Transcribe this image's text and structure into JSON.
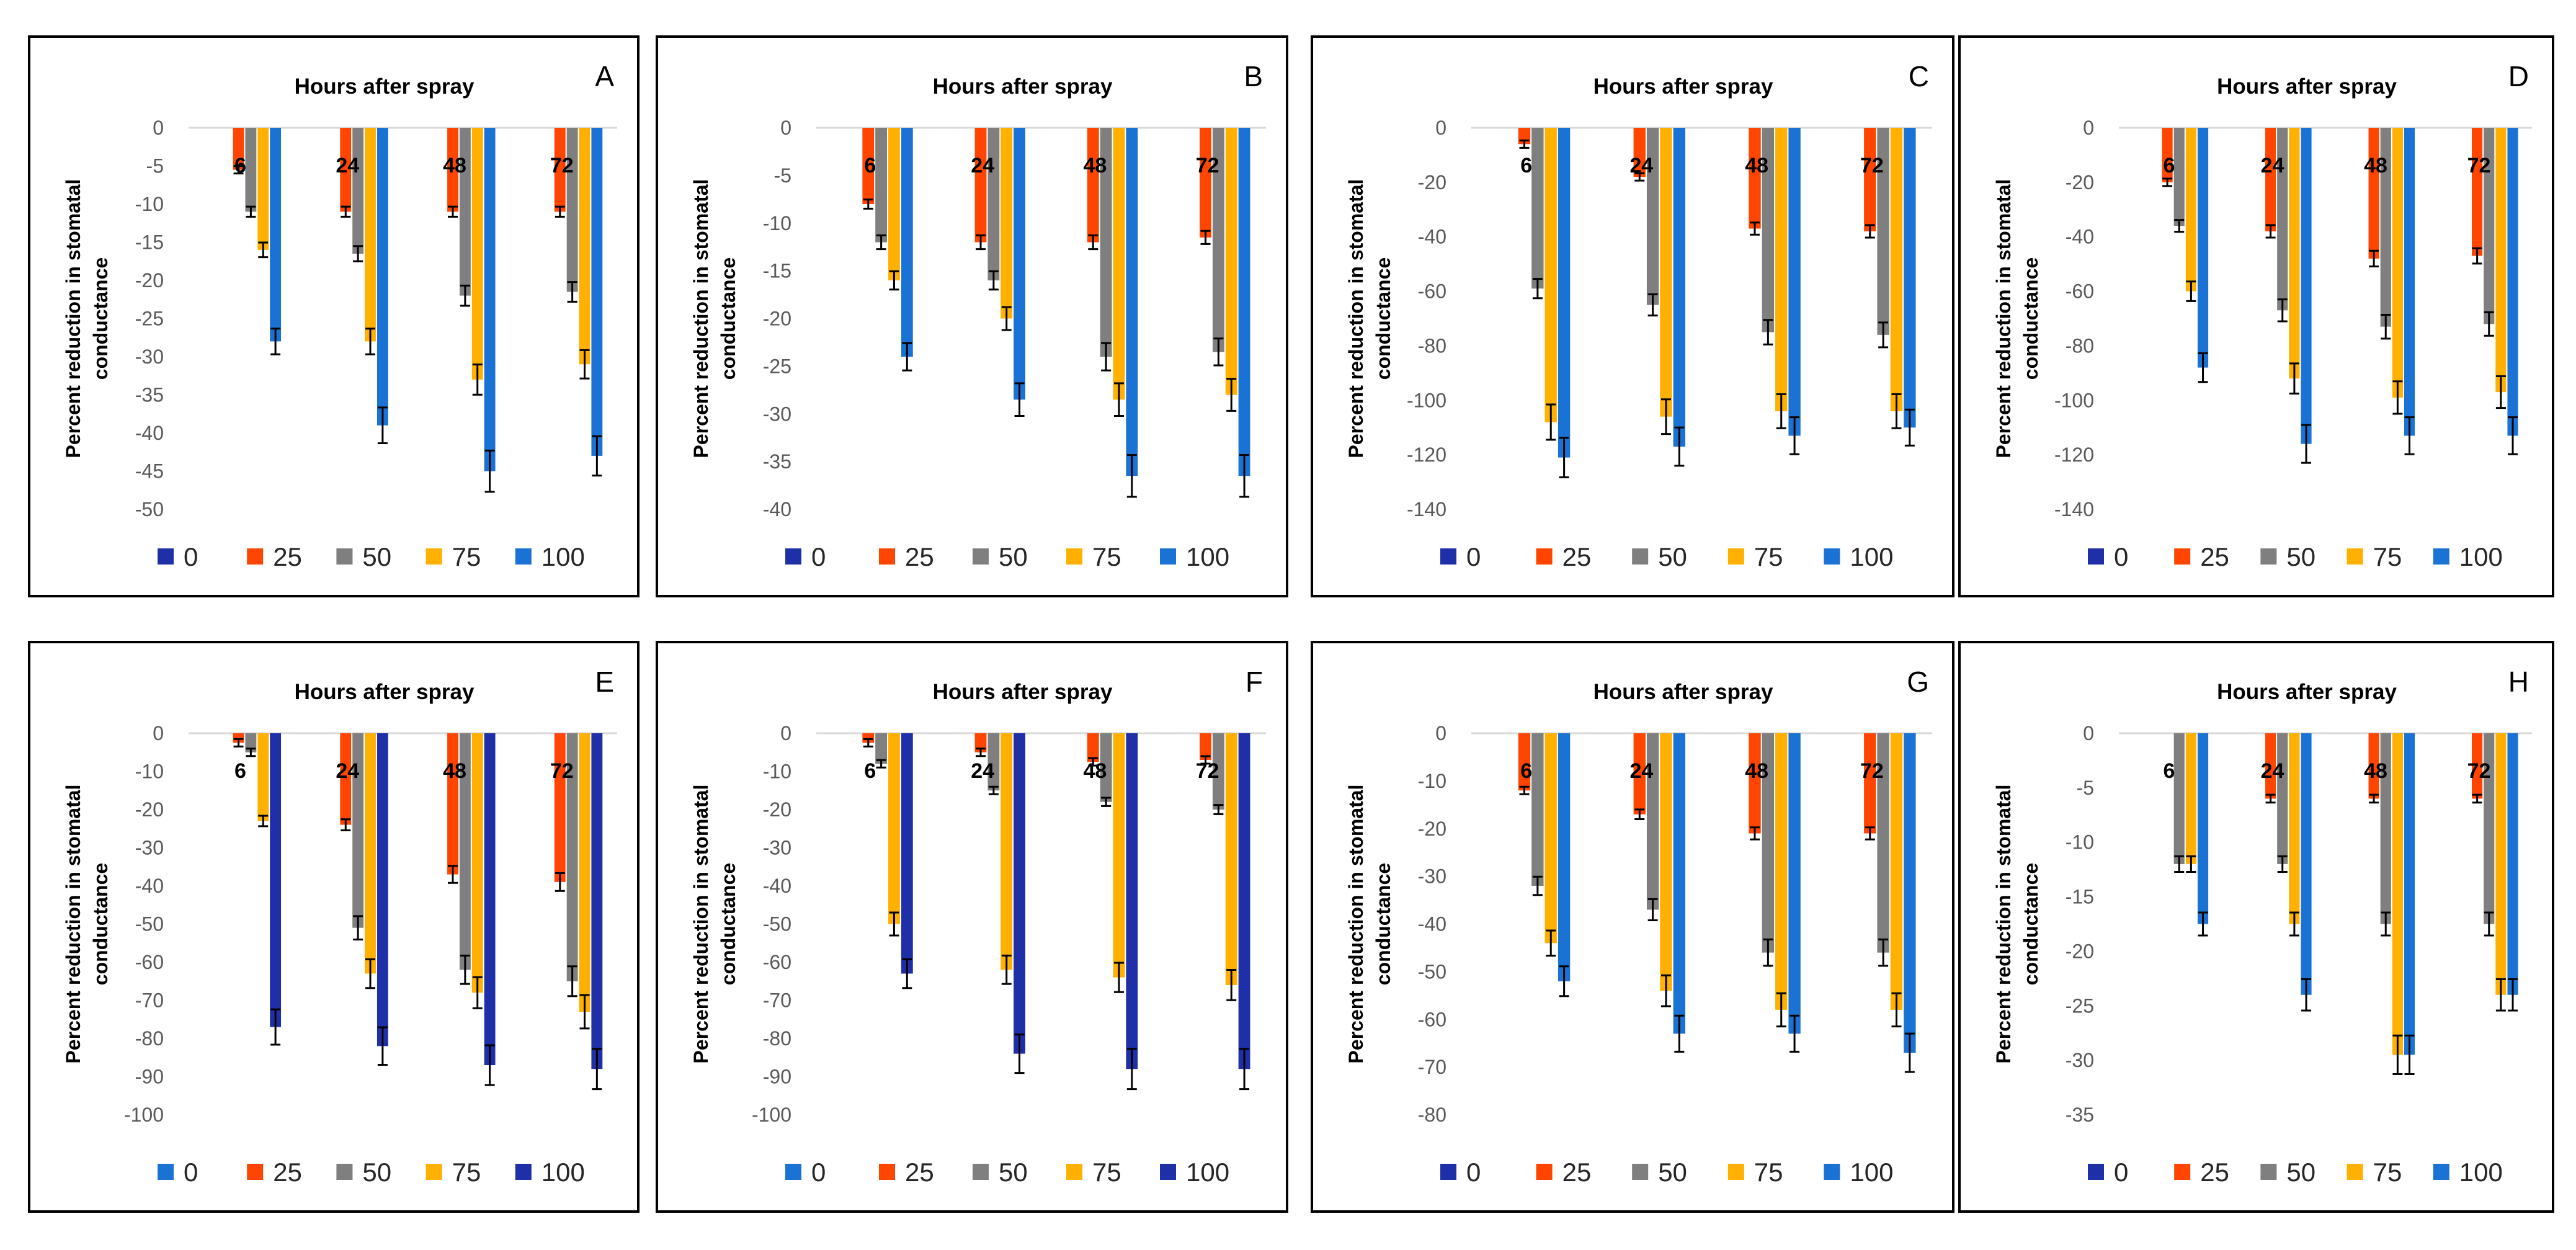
{
  "chart_data": [
    {
      "panel": "A",
      "type": "bar",
      "title": "Hours after spray",
      "xlabel": "",
      "ylabel": "Percent reduction in stomatal conductance",
      "ylim": [
        -50,
        0
      ],
      "yticks": [
        0,
        -5,
        -10,
        -15,
        -20,
        -25,
        -30,
        -35,
        -40,
        -45,
        -50
      ],
      "categories": [
        "6",
        "24",
        "48",
        "72"
      ],
      "series": [
        {
          "name": "0",
          "color": "#1f2fa8",
          "values": [
            0,
            0,
            0,
            0
          ]
        },
        {
          "name": "25",
          "color": "#ff4500",
          "values": [
            -5.5,
            -11,
            -11,
            -11
          ]
        },
        {
          "name": "50",
          "color": "#7f7f7f",
          "values": [
            -11,
            -16.5,
            -22,
            -21.5
          ]
        },
        {
          "name": "75",
          "color": "#ffb000",
          "values": [
            -16,
            -28,
            -33,
            -31
          ]
        },
        {
          "name": "100",
          "color": "#1a73d4",
          "values": [
            -28,
            -39,
            -45,
            -43
          ]
        }
      ],
      "legend": "bottom"
    },
    {
      "panel": "B",
      "type": "bar",
      "title": "Hours after spray",
      "xlabel": "",
      "ylabel": "Percent reduction in stomatal conductance",
      "ylim": [
        -40,
        0
      ],
      "yticks": [
        0,
        -5,
        -10,
        -15,
        -20,
        -25,
        -30,
        -35,
        -40
      ],
      "categories": [
        "6",
        "24",
        "48",
        "72"
      ],
      "series": [
        {
          "name": "0",
          "color": "#1f2fa8",
          "values": [
            0,
            0,
            0,
            0
          ]
        },
        {
          "name": "25",
          "color": "#ff4500",
          "values": [
            -8,
            -12,
            -12,
            -11.5
          ]
        },
        {
          "name": "50",
          "color": "#7f7f7f",
          "values": [
            -12,
            -16,
            -24,
            -23.5
          ]
        },
        {
          "name": "75",
          "color": "#ffb000",
          "values": [
            -16,
            -20,
            -28.5,
            -28
          ]
        },
        {
          "name": "100",
          "color": "#1a73d4",
          "values": [
            -24,
            -28.5,
            -36.5,
            -36.5
          ]
        }
      ],
      "legend": "bottom"
    },
    {
      "panel": "C",
      "type": "bar",
      "title": "Hours after spray",
      "xlabel": "",
      "ylabel": "Percent reduction in stomatal conductance",
      "ylim": [
        -140,
        0
      ],
      "yticks": [
        0,
        -20,
        -40,
        -60,
        -80,
        -100,
        -120,
        -140
      ],
      "categories": [
        "6",
        "24",
        "48",
        "72"
      ],
      "series": [
        {
          "name": "0",
          "color": "#1f2fa8",
          "values": [
            0,
            0,
            0,
            0
          ]
        },
        {
          "name": "25",
          "color": "#ff4500",
          "values": [
            -6,
            -18,
            -37,
            -38
          ]
        },
        {
          "name": "50",
          "color": "#7f7f7f",
          "values": [
            -59,
            -65,
            -75,
            -76
          ]
        },
        {
          "name": "75",
          "color": "#ffb000",
          "values": [
            -108,
            -106,
            -104,
            -104
          ]
        },
        {
          "name": "100",
          "color": "#1a73d4",
          "values": [
            -121,
            -117,
            -113,
            -110
          ]
        }
      ],
      "legend": "bottom"
    },
    {
      "panel": "D",
      "type": "bar",
      "title": "Hours after spray",
      "xlabel": "",
      "ylabel": "Percent reduction in stomatal conductance",
      "ylim": [
        -140,
        0
      ],
      "yticks": [
        0,
        -20,
        -40,
        -60,
        -80,
        -100,
        -120,
        -140
      ],
      "categories": [
        "6",
        "24",
        "48",
        "72"
      ],
      "series": [
        {
          "name": "0",
          "color": "#1f2fa8",
          "values": [
            0,
            0,
            0,
            0
          ]
        },
        {
          "name": "25",
          "color": "#ff4500",
          "values": [
            -20,
            -38,
            -48,
            -47
          ]
        },
        {
          "name": "50",
          "color": "#7f7f7f",
          "values": [
            -36,
            -67,
            -73,
            -72
          ]
        },
        {
          "name": "75",
          "color": "#ffb000",
          "values": [
            -60,
            -92,
            -99,
            -97
          ]
        },
        {
          "name": "100",
          "color": "#1a73d4",
          "values": [
            -88,
            -116,
            -113,
            -113
          ]
        }
      ],
      "legend": "bottom"
    },
    {
      "panel": "E",
      "type": "bar",
      "title": "Hours after spray",
      "xlabel": "",
      "ylabel": "Percent reduction in stomatal conductance",
      "ylim": [
        -100,
        0
      ],
      "yticks": [
        0,
        -10,
        -20,
        -30,
        -40,
        -50,
        -60,
        -70,
        -80,
        -90,
        -100
      ],
      "categories": [
        "6",
        "24",
        "48",
        "72"
      ],
      "series": [
        {
          "name": "0",
          "color": "#1a73d4",
          "values": [
            0,
            0,
            0,
            0
          ]
        },
        {
          "name": "25",
          "color": "#ff4500",
          "values": [
            -2.5,
            -24,
            -37,
            -39
          ]
        },
        {
          "name": "50",
          "color": "#7f7f7f",
          "values": [
            -5,
            -51,
            -62,
            -65
          ]
        },
        {
          "name": "75",
          "color": "#ffb000",
          "values": [
            -23,
            -63,
            -68,
            -73
          ]
        },
        {
          "name": "100",
          "color": "#1f2fa8",
          "values": [
            -77,
            -82,
            -87,
            -88
          ]
        }
      ],
      "legend": "bottom"
    },
    {
      "panel": "F",
      "type": "bar",
      "title": "Hours after spray",
      "xlabel": "",
      "ylabel": "Percent reduction in stomatal conductance",
      "ylim": [
        -100,
        0
      ],
      "yticks": [
        0,
        -10,
        -20,
        -30,
        -40,
        -50,
        -60,
        -70,
        -80,
        -90,
        -100
      ],
      "categories": [
        "6",
        "24",
        "48",
        "72"
      ],
      "series": [
        {
          "name": "0",
          "color": "#1a73d4",
          "values": [
            0,
            0,
            0,
            0
          ]
        },
        {
          "name": "25",
          "color": "#ff4500",
          "values": [
            -2.5,
            -5,
            -7.5,
            -7
          ]
        },
        {
          "name": "50",
          "color": "#7f7f7f",
          "values": [
            -8,
            -15,
            -18,
            -20
          ]
        },
        {
          "name": "75",
          "color": "#ffb000",
          "values": [
            -50,
            -62,
            -64,
            -66
          ]
        },
        {
          "name": "100",
          "color": "#1f2fa8",
          "values": [
            -63,
            -84,
            -88,
            -88
          ]
        }
      ],
      "legend": "bottom"
    },
    {
      "panel": "G",
      "type": "bar",
      "title": "Hours after spray",
      "xlabel": "",
      "ylabel": "Percent reduction in stomatal conductance",
      "ylim": [
        -80,
        0
      ],
      "yticks": [
        0,
        -10,
        -20,
        -30,
        -40,
        -50,
        -60,
        -70,
        -80
      ],
      "categories": [
        "6",
        "24",
        "48",
        "72"
      ],
      "series": [
        {
          "name": "0",
          "color": "#1f2fa8",
          "values": [
            0,
            0,
            0,
            0
          ]
        },
        {
          "name": "25",
          "color": "#ff4500",
          "values": [
            -12,
            -17,
            -21,
            -21
          ]
        },
        {
          "name": "50",
          "color": "#7f7f7f",
          "values": [
            -32,
            -37,
            -46,
            -46
          ]
        },
        {
          "name": "75",
          "color": "#ffb000",
          "values": [
            -44,
            -54,
            -58,
            -58
          ]
        },
        {
          "name": "100",
          "color": "#1a73d4",
          "values": [
            -52,
            -63,
            -63,
            -67
          ]
        }
      ],
      "legend": "bottom"
    },
    {
      "panel": "H",
      "type": "bar",
      "title": "Hours after spray",
      "xlabel": "",
      "ylabel": "Percent reduction in stomatal conductance",
      "ylim": [
        -35,
        0
      ],
      "yticks": [
        0,
        -5,
        -10,
        -15,
        -20,
        -25,
        -30,
        -35
      ],
      "categories": [
        "6",
        "24",
        "48",
        "72"
      ],
      "series": [
        {
          "name": "0",
          "color": "#1f2fa8",
          "values": [
            0,
            0,
            0,
            0
          ]
        },
        {
          "name": "25",
          "color": "#ff4500",
          "values": [
            0,
            -6,
            -6,
            -6
          ]
        },
        {
          "name": "50",
          "color": "#7f7f7f",
          "values": [
            -12,
            -12,
            -17.5,
            -17.5
          ]
        },
        {
          "name": "75",
          "color": "#ffb000",
          "values": [
            -12,
            -17.5,
            -29.5,
            -24
          ]
        },
        {
          "name": "100",
          "color": "#1a73d4",
          "values": [
            -17.5,
            -24,
            -29.5,
            -24
          ]
        }
      ],
      "legend": "bottom"
    }
  ]
}
